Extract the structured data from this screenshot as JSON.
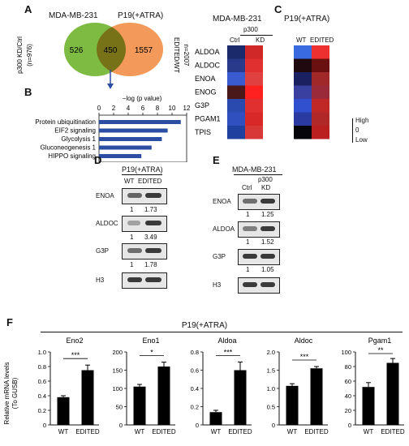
{
  "panelA": {
    "letter": "A",
    "col1": "MDA-MB-231",
    "col2": "P19(+ATRA)",
    "left_only": "526",
    "overlap": "450",
    "right_only": "1557",
    "left_label_1": "p300 KD/Ctrl",
    "left_label_2": "(n=976)",
    "right_label_1": "EDITED/WT",
    "right_label_2": "n=2007",
    "colors": {
      "left": "#7dbb42",
      "overlap": "#7a9a3a",
      "right": "#f39a5a",
      "arrow": "#2b4ea2"
    }
  },
  "panelB": {
    "letter": "B",
    "chart_data": {
      "type": "bar",
      "orientation": "horizontal",
      "title": "−log (p value)",
      "categories": [
        "Protein ubiquitination",
        "EIF2 signaling",
        "Glycolysis 1",
        "Gluconeogenesis 1",
        "HIPPO signaling"
      ],
      "values": [
        11.2,
        9.4,
        8.6,
        7.2,
        5.8
      ],
      "ticks": [
        "0",
        "2",
        "4",
        "6",
        "8",
        "10",
        "12"
      ],
      "xlim": [
        0,
        12
      ],
      "bar_color": "#2b4ea2"
    }
  },
  "panelC": {
    "letter": "C",
    "group1": "MDA-MB-231",
    "group2": "P19(+ATRA)",
    "group1_sub": "p300",
    "col_ctrl": "Ctrl",
    "col_kd": "KD",
    "col_wt": "WT",
    "col_edited": "EDITED",
    "legend_high": "High",
    "legend_zero": "0",
    "legend_low": "Low",
    "chart_data": {
      "type": "heatmap",
      "rows": [
        "ALDOA",
        "ALDOC",
        "ENOA",
        "ENOG",
        "G3P",
        "PGAM1",
        "TPIS"
      ],
      "left_columns": [
        "Ctrl",
        "KD"
      ],
      "right_columns": [
        "WT",
        "EDITED"
      ],
      "left_colors": [
        [
          "#1a2a6a",
          "#d02828"
        ],
        [
          "#2a3a8a",
          "#e03030"
        ],
        [
          "#3a5ad0",
          "#e04040"
        ],
        [
          "#4a1818",
          "#ff2020"
        ],
        [
          "#2a4ab0",
          "#e03030"
        ],
        [
          "#3050c0",
          "#d82828"
        ],
        [
          "#2040a0",
          "#d83838"
        ]
      ],
      "right_colors": [
        [
          "#3a6ae0",
          "#ee3030"
        ],
        [
          "#200a10",
          "#6a1010"
        ],
        [
          "#1a2060",
          "#a02828"
        ],
        [
          "#3a40a0",
          "#9a2a3a"
        ],
        [
          "#3050d0",
          "#c02828"
        ],
        [
          "#2a3aa0",
          "#b02828"
        ],
        [
          "#05050a",
          "#bb2020"
        ]
      ]
    }
  },
  "panelD": {
    "letter": "D",
    "title": "P19(+ATRA)",
    "lanes": [
      "WT",
      "EDITED"
    ],
    "blots": [
      {
        "label": "ENOA",
        "values": [
          "1",
          "1.73"
        ]
      },
      {
        "label": "ALDOC",
        "values": [
          "1",
          "3.49"
        ]
      },
      {
        "label": "G3P",
        "values": [
          "1",
          "1.78"
        ]
      },
      {
        "label": "H3",
        "values": []
      }
    ]
  },
  "panelE": {
    "letter": "E",
    "title": "MDA-MB-231",
    "lane_sub": "p300",
    "lanes": [
      "Ctrl",
      "KD"
    ],
    "blots": [
      {
        "label": "ENOA",
        "values": [
          "1",
          "1.25"
        ]
      },
      {
        "label": "ALDOA",
        "values": [
          "1",
          "1.52"
        ]
      },
      {
        "label": "G3P",
        "values": [
          "1",
          "1.05"
        ]
      },
      {
        "label": "H3",
        "values": []
      }
    ]
  },
  "panelF": {
    "letter": "F",
    "title": "P19(+ATRA)",
    "ylabel_1": "Relative mRNA levels",
    "ylabel_2": "(To GUSB)",
    "chart_data": [
      {
        "type": "bar",
        "title": "Eno2",
        "categories": [
          "WT",
          "EDITED"
        ],
        "values": [
          0.38,
          0.75
        ],
        "errors": [
          0.02,
          0.07
        ],
        "ylim": [
          0,
          1.0
        ],
        "ticks": [
          "0",
          "0.2",
          "0.4",
          "0.6",
          "0.8",
          "1.0"
        ],
        "tick_values": [
          0,
          0.2,
          0.4,
          0.6,
          0.8,
          1.0
        ],
        "significance": "***"
      },
      {
        "type": "bar",
        "title": "Eno1",
        "categories": [
          "WT",
          "EDITED"
        ],
        "values": [
          105,
          160
        ],
        "errors": [
          6,
          12
        ],
        "ylim": [
          0,
          200
        ],
        "ticks": [
          "0",
          "50",
          "100",
          "150",
          "200"
        ],
        "tick_values": [
          0,
          50,
          100,
          150,
          200
        ],
        "significance": "*"
      },
      {
        "type": "bar",
        "title": "Aldoa",
        "categories": [
          "WT",
          "EDITED"
        ],
        "values": [
          0.14,
          0.6
        ],
        "errors": [
          0.02,
          0.09
        ],
        "ylim": [
          0,
          0.8
        ],
        "ticks": [
          "0",
          "0.2",
          "0.4",
          "0.6",
          "0.8"
        ],
        "tick_values": [
          0,
          0.2,
          0.4,
          0.6,
          0.8
        ],
        "significance": "***"
      },
      {
        "type": "bar",
        "title": "Aldoc",
        "categories": [
          "WT",
          "EDITED"
        ],
        "values": [
          1.07,
          1.55
        ],
        "errors": [
          0.06,
          0.05
        ],
        "ylim": [
          0,
          2.0
        ],
        "ticks": [
          "0",
          "0.5",
          "1.0",
          "1.5",
          "2.0"
        ],
        "tick_values": [
          0,
          0.5,
          1.0,
          1.5,
          2.0
        ],
        "significance": "***"
      },
      {
        "type": "bar",
        "title": "Pgam1",
        "categories": [
          "WT",
          "EDITED"
        ],
        "values": [
          52,
          85
        ],
        "errors": [
          6,
          6
        ],
        "ylim": [
          0,
          100
        ],
        "ticks": [
          "0",
          "20",
          "40",
          "60",
          "80",
          "100"
        ],
        "tick_values": [
          0,
          20,
          40,
          60,
          80,
          100
        ],
        "significance": "**"
      }
    ]
  }
}
